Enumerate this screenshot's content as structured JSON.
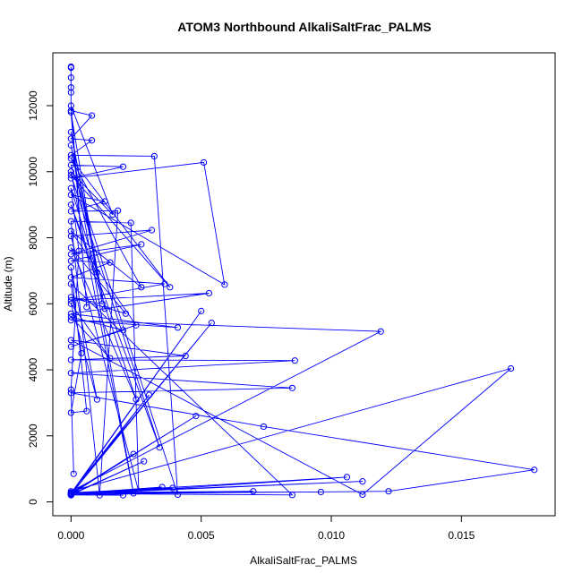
{
  "chart_data": {
    "type": "line",
    "title": "ATOM3 Northbound AlkaliSaltFrac_PALMS",
    "xlabel": "AlkaliSaltFrac_PALMS",
    "ylabel": "Altitude (m)",
    "xlim": [
      -0.0007,
      0.0186
    ],
    "ylim": [
      -420,
      13600
    ],
    "xticks": [
      0.0,
      0.005,
      0.01,
      0.015
    ],
    "xtick_labels": [
      "0.000",
      "0.005",
      "0.010",
      "0.015"
    ],
    "yticks": [
      0,
      2000,
      4000,
      6000,
      8000,
      10000,
      12000
    ],
    "ytick_labels": [
      "0",
      "2000",
      "4000",
      "6000",
      "8000",
      "10000",
      "12000"
    ],
    "grid": false,
    "series": [
      {
        "color": "#0000ff",
        "marker": "open-circle",
        "points": [
          [
            0.0,
            13150
          ],
          [
            0.0,
            13180
          ],
          [
            0.0,
            12850
          ],
          [
            0.0,
            12550
          ],
          [
            0.0,
            12400
          ],
          [
            0.0,
            11850
          ],
          [
            0.0008,
            11700
          ],
          [
            0.0,
            11000
          ],
          [
            0.0008,
            10950
          ],
          [
            0.0,
            10500
          ],
          [
            0.0032,
            10470
          ],
          [
            0.0041,
            220
          ],
          [
            0.0,
            10200
          ],
          [
            0.002,
            10150
          ],
          [
            0.0,
            9800
          ],
          [
            0.0051,
            10280
          ],
          [
            0.0059,
            6580
          ],
          [
            0.0,
            9300
          ],
          [
            0.0013,
            9100
          ],
          [
            0.0,
            8800
          ],
          [
            0.0018,
            8820
          ],
          [
            0.0011,
            200
          ],
          [
            0.0,
            8500
          ],
          [
            0.0023,
            8450
          ],
          [
            0.0026,
            320
          ],
          [
            0.0,
            8050
          ],
          [
            0.0031,
            8230
          ],
          [
            0.0,
            7500
          ],
          [
            0.0027,
            7800
          ],
          [
            0.0,
            7300
          ],
          [
            0.0015,
            7250
          ],
          [
            0.0,
            6800
          ],
          [
            0.0036,
            6600
          ],
          [
            0.0,
            6100
          ],
          [
            0.0053,
            6320
          ],
          [
            0.0,
            5700
          ],
          [
            0.0041,
            5280
          ],
          [
            0.0,
            5500
          ],
          [
            0.0119,
            5160
          ],
          [
            0.0,
            320
          ],
          [
            0.0169,
            4040
          ],
          [
            0.0112,
            220
          ],
          [
            0.0,
            4900
          ],
          [
            0.0044,
            4420
          ],
          [
            0.0,
            4300
          ],
          [
            0.0086,
            4280
          ],
          [
            0.0,
            3900
          ],
          [
            0.0085,
            3450
          ],
          [
            0.0,
            3300
          ],
          [
            0.0074,
            2280
          ],
          [
            0.0178,
            970
          ],
          [
            0.0122,
            320
          ],
          [
            0.0,
            240
          ],
          [
            0.0112,
            620
          ],
          [
            0.0,
            260
          ],
          [
            0.0106,
            750
          ],
          [
            0.0,
            200
          ],
          [
            0.007,
            320
          ],
          [
            0.0,
            280
          ],
          [
            0.0096,
            300
          ],
          [
            0.0,
            250
          ],
          [
            0.0035,
            450
          ],
          [
            0.0,
            210
          ],
          [
            0.002,
            200
          ],
          [
            0.0,
            220
          ],
          [
            0.0024,
            1450
          ],
          [
            0.0,
            260
          ],
          [
            0.005,
            5780
          ],
          [
            0.0,
            230
          ],
          [
            0.0054,
            5420
          ],
          [
            0.0,
            280
          ],
          [
            0.0039,
            420
          ],
          [
            0.0,
            230
          ],
          [
            0.0028,
            1230
          ],
          [
            0.0,
            210
          ],
          [
            0.003,
            3240
          ],
          [
            0.0,
            270
          ],
          [
            0.0048,
            2600
          ],
          [
            0.0,
            250
          ],
          [
            0.0085,
            210
          ],
          [
            0.0,
            6600
          ],
          [
            0.0004,
            4500
          ],
          [
            0.0,
            2700
          ],
          [
            0.0006,
            2750
          ],
          [
            0.0,
            7100
          ],
          [
            0.001,
            3100
          ],
          [
            0.0,
            6000
          ],
          [
            0.0015,
            4350
          ],
          [
            0.0,
            5600
          ],
          [
            0.002,
            5200
          ],
          [
            0.0,
            4700
          ],
          [
            0.0025,
            5350
          ],
          [
            0.0,
            8200
          ],
          [
            0.0027,
            6500
          ],
          [
            0.0,
            10400
          ],
          [
            0.0038,
            6500
          ],
          [
            0.0,
            9900
          ],
          [
            0.0034,
            1650
          ],
          [
            0.0,
            9000
          ],
          [
            0.0025,
            3100
          ],
          [
            0.0,
            7700
          ],
          [
            0.0021,
            5700
          ],
          [
            0.0,
            6200
          ],
          [
            0.0012,
            6000
          ],
          [
            0.0,
            11200
          ],
          [
            0.0013,
            5850
          ],
          [
            0.0,
            10800
          ],
          [
            0.0024,
            260
          ],
          [
            0.0,
            10000
          ],
          [
            0.0016,
            8700
          ],
          [
            0.0,
            12000
          ],
          [
            0.0006,
            5900
          ],
          [
            0.0,
            11800
          ],
          [
            0.001,
            6950
          ],
          [
            0.0,
            9500
          ],
          [
            0.0003,
            7600
          ],
          [
            0.0,
            3400
          ],
          [
            0.0001,
            850
          ]
        ]
      }
    ]
  }
}
